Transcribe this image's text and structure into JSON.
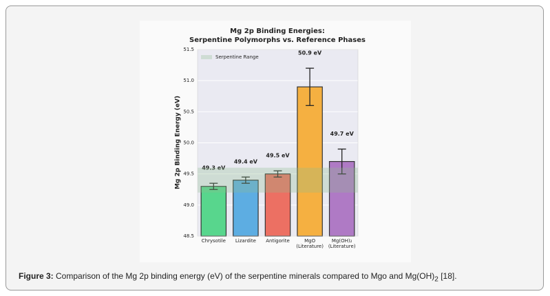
{
  "chart_data": {
    "type": "bar",
    "title": "Mg 2p Binding Energies:",
    "subtitle": "Serpentine Polymorphs vs. Reference Phases",
    "y_label": "Mg 2p Binding Energy (eV)",
    "categories": [
      "Chrysotile",
      "Lizardite",
      "Antigorite",
      "MgO\n(Literature)",
      "Mg(OH)₂\n(Literature)"
    ],
    "values": [
      49.3,
      49.4,
      49.5,
      50.9,
      49.7
    ],
    "errors": [
      0.05,
      0.05,
      0.05,
      0.3,
      0.2
    ],
    "value_labels": [
      "49.3 eV",
      "49.4 eV",
      "49.5 eV",
      "50.9 eV",
      "49.7 eV"
    ],
    "colors": [
      "#58d68d",
      "#5dade2",
      "#ec7063",
      "#f5b041",
      "#af7ac5"
    ],
    "band": {
      "name": "Serpentine Range",
      "ymin": 49.2,
      "ymax": 49.6,
      "color": "#8fbc8f"
    },
    "ylim": [
      48.5,
      51.5
    ],
    "yticks": [
      48.5,
      {
        "value": 49,
        "label": "49.0"
      },
      49.5,
      {
        "value": 50,
        "label": "50.0"
      },
      50.5,
      {
        "value": 51,
        "label": "51.0"
      },
      51.5
    ],
    "grid": true,
    "legend": "upper-left"
  },
  "caption": {
    "label": "Figure 3:",
    "text": " Comparison of the Mg 2p binding energy (eV) of the serpentine minerals compared to Mgo and Mg(OH)",
    "subscript": "2",
    "end": " [18]."
  }
}
